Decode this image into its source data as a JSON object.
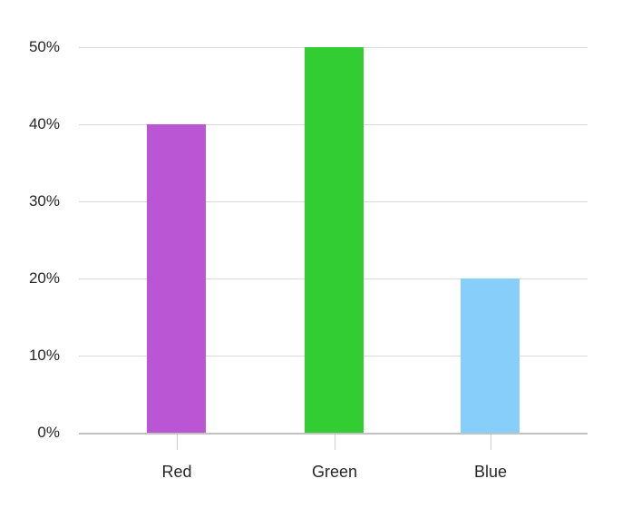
{
  "chart_data": {
    "type": "bar",
    "title": "",
    "xlabel": "",
    "ylabel": "",
    "categories": [
      "Red",
      "Green",
      "Blue"
    ],
    "values": [
      40,
      50,
      20
    ],
    "unit": "%",
    "series": [
      {
        "name": "value",
        "values": [
          40,
          50,
          20
        ]
      }
    ],
    "bar_colors": [
      "#ba55d3",
      "#32cd32",
      "#87cefa"
    ],
    "ylim": [
      0,
      50
    ],
    "ytick_step": 10,
    "ytick_labels": [
      "0%",
      "10%",
      "20%",
      "30%",
      "40%",
      "50%"
    ],
    "grid": true,
    "legend": "none",
    "colors": {
      "background": "#ffffff",
      "gridline": "#d9d9d9",
      "baseline": "#c2c2c2",
      "axis_tick": "#cfcfcf",
      "text": "#262626"
    }
  }
}
